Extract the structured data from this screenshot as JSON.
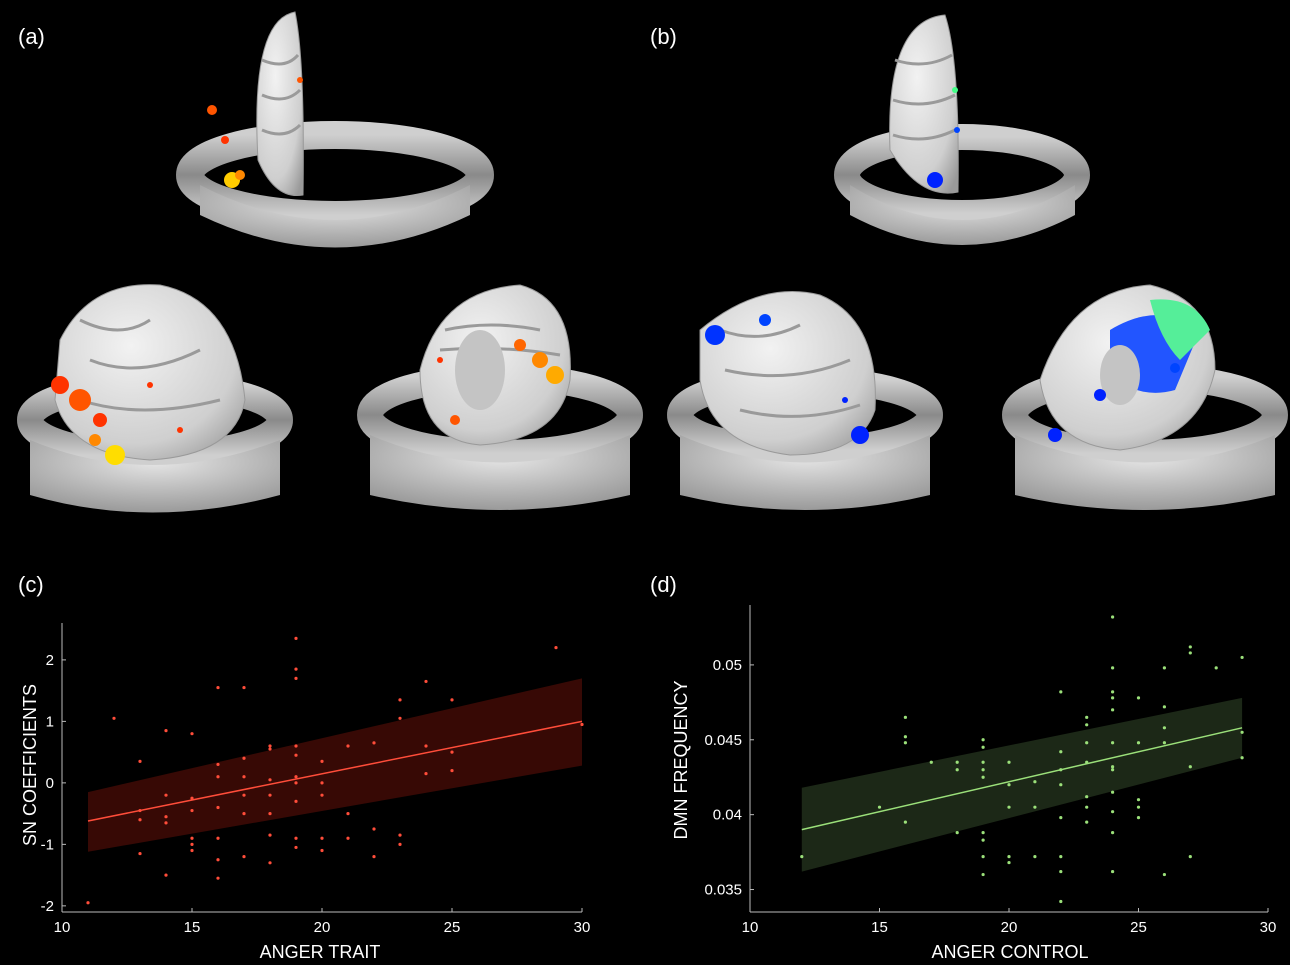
{
  "panels": {
    "a": "(a)",
    "b": "(b)",
    "c": "(c)",
    "d": "(d)"
  },
  "colors": {
    "background": "#000000",
    "head": "#a8a8a8",
    "cortex": "#d9d9d9",
    "sn_activation": [
      "#ff3300",
      "#ff8800",
      "#ffdd00"
    ],
    "dmn_activation": [
      "#0022ff",
      "#0066ff",
      "#44ff88"
    ],
    "chart_c_line": "#ff4d3a",
    "chart_c_band": "#3a0a05",
    "chart_d_line": "#9be07a",
    "chart_d_band": "#1e2a18"
  },
  "chart_data": [
    {
      "type": "scatter",
      "panel": "c",
      "xlabel": "ANGER TRAIT",
      "ylabel": "SN COEFFICIENTS",
      "xlim": [
        10,
        30
      ],
      "ylim": [
        -2.1,
        2.6
      ],
      "xticks": [
        10,
        15,
        20,
        25,
        30
      ],
      "yticks": [
        -2,
        -1,
        0,
        1,
        2
      ],
      "grid": false,
      "points": [
        [
          11,
          -1.95
        ],
        [
          12,
          1.05
        ],
        [
          13,
          0.35
        ],
        [
          13,
          -0.45
        ],
        [
          13,
          -0.6
        ],
        [
          13,
          -1.15
        ],
        [
          14,
          0.85
        ],
        [
          14,
          -0.2
        ],
        [
          14,
          -0.55
        ],
        [
          14,
          -0.65
        ],
        [
          14,
          -1.5
        ],
        [
          15,
          0.8
        ],
        [
          15,
          -0.25
        ],
        [
          15,
          -0.45
        ],
        [
          15,
          -0.9
        ],
        [
          15,
          -1.0
        ],
        [
          15,
          -1.1
        ],
        [
          16,
          1.55
        ],
        [
          16,
          0.3
        ],
        [
          16,
          0.1
        ],
        [
          16,
          -0.4
        ],
        [
          16,
          -0.9
        ],
        [
          16,
          -1.25
        ],
        [
          16,
          -1.55
        ],
        [
          17,
          1.55
        ],
        [
          17,
          0.4
        ],
        [
          17,
          0.1
        ],
        [
          17,
          -0.2
        ],
        [
          17,
          -0.5
        ],
        [
          17,
          -1.2
        ],
        [
          18,
          0.6
        ],
        [
          18,
          0.55
        ],
        [
          18,
          0.05
        ],
        [
          18,
          -0.2
        ],
        [
          18,
          -0.5
        ],
        [
          18,
          -0.85
        ],
        [
          18,
          -1.3
        ],
        [
          19,
          2.35
        ],
        [
          19,
          1.85
        ],
        [
          19,
          1.7
        ],
        [
          19,
          0.6
        ],
        [
          19,
          0.45
        ],
        [
          19,
          0.1
        ],
        [
          19,
          0.0
        ],
        [
          19,
          -0.3
        ],
        [
          19,
          -0.9
        ],
        [
          19,
          -1.05
        ],
        [
          20,
          0.35
        ],
        [
          20,
          0.0
        ],
        [
          20,
          -0.2
        ],
        [
          20,
          -0.9
        ],
        [
          20,
          -1.1
        ],
        [
          21,
          0.6
        ],
        [
          21,
          -0.5
        ],
        [
          21,
          -0.9
        ],
        [
          22,
          0.65
        ],
        [
          22,
          -0.75
        ],
        [
          22,
          -1.2
        ],
        [
          23,
          1.35
        ],
        [
          23,
          1.05
        ],
        [
          23,
          -0.85
        ],
        [
          23,
          -1.0
        ],
        [
          24,
          1.65
        ],
        [
          24,
          0.6
        ],
        [
          24,
          0.15
        ],
        [
          25,
          1.35
        ],
        [
          25,
          0.5
        ],
        [
          25,
          0.2
        ],
        [
          29,
          2.2
        ],
        [
          30,
          0.95
        ]
      ],
      "fit": {
        "x": [
          11,
          30
        ],
        "y": [
          -0.62,
          1.0
        ]
      },
      "band": {
        "x": [
          11,
          30
        ],
        "upper": [
          -0.15,
          1.7
        ],
        "lower": [
          -1.12,
          0.28
        ]
      }
    },
    {
      "type": "scatter",
      "panel": "d",
      "xlabel": "ANGER CONTROL",
      "ylabel": "DMN FREQUENCY",
      "xlim": [
        10,
        30
      ],
      "ylim": [
        0.0335,
        0.054
      ],
      "xticks": [
        10,
        15,
        20,
        25,
        30
      ],
      "yticks": [
        0.035,
        0.04,
        0.045,
        0.05
      ],
      "grid": false,
      "points": [
        [
          12,
          0.0372
        ],
        [
          15,
          0.0405
        ],
        [
          16,
          0.0465
        ],
        [
          16,
          0.0452
        ],
        [
          16,
          0.0448
        ],
        [
          16,
          0.0395
        ],
        [
          17,
          0.0435
        ],
        [
          18,
          0.0435
        ],
        [
          18,
          0.043
        ],
        [
          18,
          0.0388
        ],
        [
          19,
          0.045
        ],
        [
          19,
          0.0445
        ],
        [
          19,
          0.0435
        ],
        [
          19,
          0.043
        ],
        [
          19,
          0.0425
        ],
        [
          19,
          0.0388
        ],
        [
          19,
          0.0383
        ],
        [
          19,
          0.0372
        ],
        [
          19,
          0.036
        ],
        [
          20,
          0.0435
        ],
        [
          20,
          0.042
        ],
        [
          20,
          0.0405
        ],
        [
          20,
          0.0372
        ],
        [
          20,
          0.0368
        ],
        [
          21,
          0.0422
        ],
        [
          21,
          0.0405
        ],
        [
          21,
          0.0372
        ],
        [
          22,
          0.0482
        ],
        [
          22,
          0.0442
        ],
        [
          22,
          0.043
        ],
        [
          22,
          0.042
        ],
        [
          22,
          0.0398
        ],
        [
          22,
          0.0372
        ],
        [
          22,
          0.0362
        ],
        [
          22,
          0.0342
        ],
        [
          23,
          0.0465
        ],
        [
          23,
          0.046
        ],
        [
          23,
          0.0448
        ],
        [
          23,
          0.0435
        ],
        [
          23,
          0.0412
        ],
        [
          23,
          0.0405
        ],
        [
          23,
          0.0395
        ],
        [
          24,
          0.0532
        ],
        [
          24,
          0.0498
        ],
        [
          24,
          0.0482
        ],
        [
          24,
          0.0478
        ],
        [
          24,
          0.047
        ],
        [
          24,
          0.0448
        ],
        [
          24,
          0.0432
        ],
        [
          24,
          0.043
        ],
        [
          24,
          0.0415
        ],
        [
          24,
          0.0402
        ],
        [
          24,
          0.0388
        ],
        [
          24,
          0.0362
        ],
        [
          25,
          0.0478
        ],
        [
          25,
          0.0448
        ],
        [
          25,
          0.041
        ],
        [
          25,
          0.0405
        ],
        [
          25,
          0.0398
        ],
        [
          26,
          0.0498
        ],
        [
          26,
          0.0472
        ],
        [
          26,
          0.0458
        ],
        [
          26,
          0.0448
        ],
        [
          26,
          0.036
        ],
        [
          27,
          0.0512
        ],
        [
          27,
          0.0508
        ],
        [
          27,
          0.0432
        ],
        [
          27,
          0.0372
        ],
        [
          28,
          0.0498
        ],
        [
          29,
          0.0505
        ],
        [
          29,
          0.0455
        ],
        [
          29,
          0.0438
        ]
      ],
      "fit": {
        "x": [
          12,
          29
        ],
        "y": [
          0.039,
          0.0458
        ]
      },
      "band": {
        "x": [
          12,
          29
        ],
        "upper": [
          0.0418,
          0.0478
        ],
        "lower": [
          0.0362,
          0.0438
        ]
      }
    }
  ]
}
